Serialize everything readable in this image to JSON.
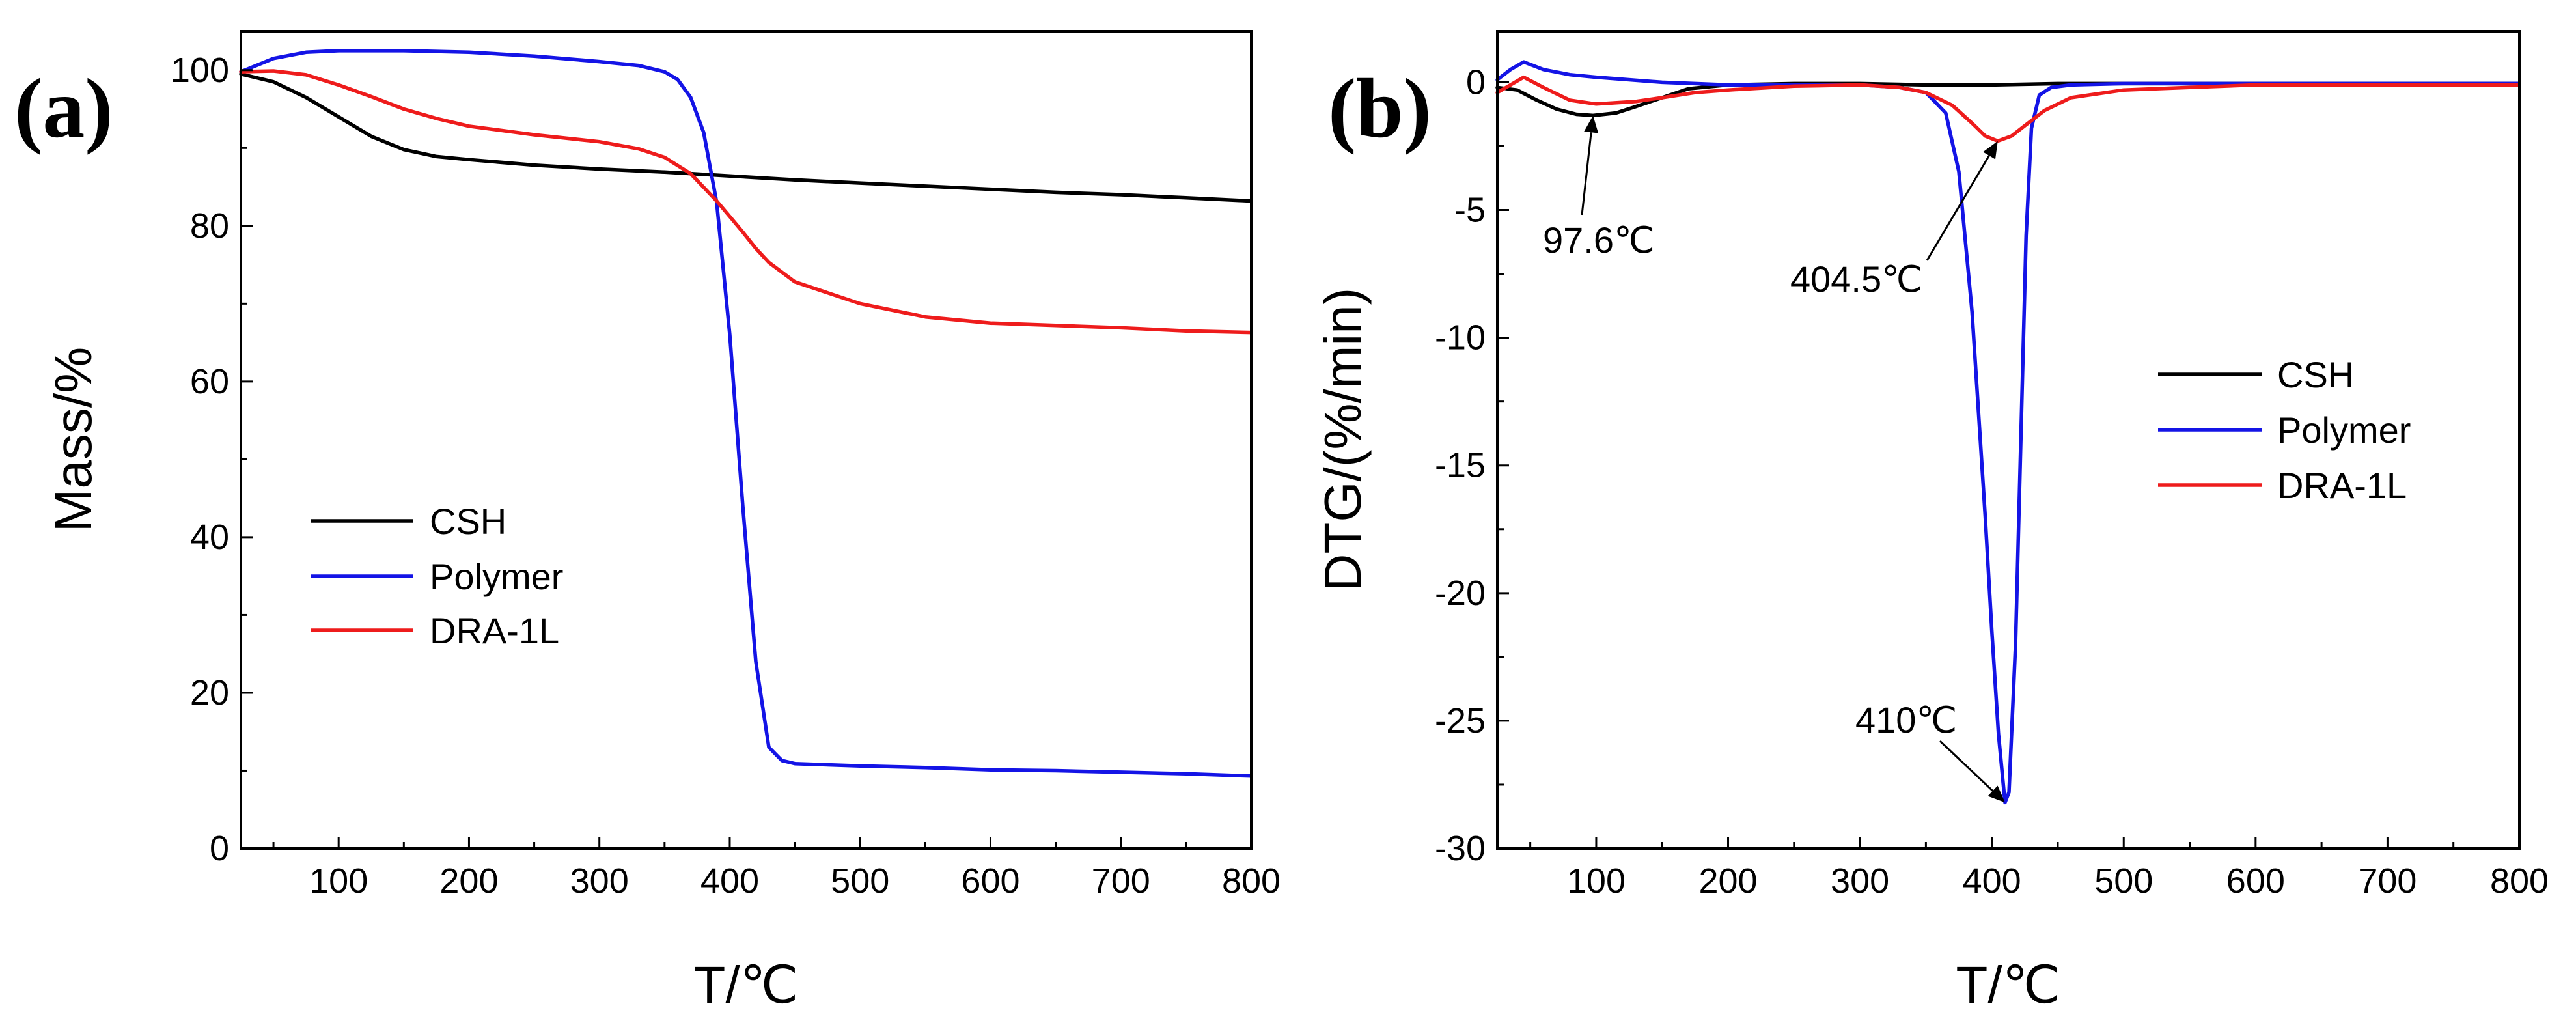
{
  "colors": {
    "CSH": "#000000",
    "Polymer": "#1414e6",
    "DRA-1L": "#ee1c1c"
  },
  "chart_data": [
    {
      "panel_label": "(a)",
      "type": "line",
      "title": "",
      "xlabel": "T/℃",
      "ylabel": "Mass/%",
      "xlim": [
        25,
        800
      ],
      "ylim": [
        0,
        105
      ],
      "xticks": [
        100,
        200,
        300,
        400,
        500,
        600,
        700,
        800
      ],
      "yticks": [
        0,
        20,
        40,
        60,
        80,
        100
      ],
      "grid": false,
      "legend_position": "lower-left",
      "series": [
        {
          "name": "CSH",
          "color_key": "CSH",
          "x": [
            25,
            50,
            75,
            100,
            125,
            150,
            175,
            200,
            250,
            300,
            350,
            400,
            450,
            500,
            550,
            600,
            650,
            700,
            750,
            800
          ],
          "y": [
            99.5,
            98.5,
            96.5,
            94,
            91.5,
            89.8,
            88.9,
            88.5,
            87.8,
            87.3,
            86.9,
            86.4,
            85.9,
            85.5,
            85.1,
            84.7,
            84.3,
            84.0,
            83.6,
            83.2
          ]
        },
        {
          "name": "Polymer",
          "color_key": "Polymer",
          "x": [
            25,
            50,
            75,
            100,
            150,
            200,
            250,
            300,
            330,
            350,
            360,
            370,
            380,
            390,
            400,
            410,
            420,
            430,
            440,
            450,
            500,
            550,
            600,
            650,
            700,
            750,
            800
          ],
          "y": [
            99.8,
            101.5,
            102.3,
            102.5,
            102.5,
            102.3,
            101.8,
            101.1,
            100.6,
            99.8,
            98.8,
            96.5,
            92,
            83,
            66,
            44,
            24,
            13,
            11.3,
            10.9,
            10.6,
            10.4,
            10.1,
            10.0,
            9.8,
            9.6,
            9.3
          ]
        },
        {
          "name": "DRA-1L",
          "color_key": "DRA-1L",
          "x": [
            25,
            50,
            75,
            100,
            125,
            150,
            175,
            200,
            250,
            300,
            330,
            350,
            370,
            390,
            400,
            410,
            420,
            430,
            450,
            500,
            550,
            600,
            650,
            700,
            750,
            800
          ],
          "y": [
            99.8,
            99.9,
            99.4,
            98.1,
            96.6,
            95.0,
            93.8,
            92.8,
            91.7,
            90.8,
            89.9,
            88.8,
            86.7,
            83.2,
            81.2,
            79.2,
            77.1,
            75.3,
            72.8,
            70.0,
            68.3,
            67.5,
            67.2,
            66.9,
            66.5,
            66.3
          ]
        }
      ]
    },
    {
      "panel_label": "(b)",
      "type": "line",
      "title": "",
      "xlabel": "T/℃",
      "ylabel": "DTG/(%/min)",
      "xlim": [
        25,
        800
      ],
      "ylim": [
        -30,
        2
      ],
      "xticks": [
        100,
        200,
        300,
        400,
        500,
        600,
        700,
        800
      ],
      "yticks": [
        0,
        -5,
        -10,
        -15,
        -20,
        -25,
        -30
      ],
      "grid": false,
      "legend_position": "center-right",
      "series": [
        {
          "name": "CSH",
          "color_key": "CSH",
          "x": [
            25,
            40,
            55,
            70,
            85,
            97.6,
            115,
            130,
            150,
            170,
            200,
            250,
            300,
            350,
            400,
            450,
            500,
            600,
            700,
            800
          ],
          "y": [
            -0.2,
            -0.3,
            -0.7,
            -1.05,
            -1.25,
            -1.3,
            -1.2,
            -0.95,
            -0.6,
            -0.25,
            -0.1,
            -0.05,
            -0.05,
            -0.1,
            -0.1,
            -0.05,
            -0.05,
            -0.05,
            -0.05,
            -0.05
          ]
        },
        {
          "name": "Polymer",
          "color_key": "Polymer",
          "x": [
            25,
            35,
            45,
            60,
            80,
            100,
            150,
            200,
            250,
            300,
            330,
            350,
            365,
            375,
            385,
            395,
            400,
            405,
            410,
            413,
            418,
            422,
            426,
            430,
            436,
            445,
            460,
            500,
            600,
            700,
            800
          ],
          "y": [
            0.1,
            0.5,
            0.8,
            0.5,
            0.3,
            0.2,
            0,
            -0.1,
            -0.1,
            -0.1,
            -0.2,
            -0.4,
            -1.2,
            -3.5,
            -9,
            -17,
            -21.5,
            -25.5,
            -28.2,
            -27.8,
            -22,
            -14,
            -6,
            -1.8,
            -0.5,
            -0.2,
            -0.1,
            -0.05,
            -0.05,
            -0.05,
            -0.05
          ]
        },
        {
          "name": "DRA-1L",
          "color_key": "DRA-1L",
          "x": [
            25,
            35,
            45,
            60,
            80,
            100,
            130,
            150,
            175,
            200,
            250,
            300,
            330,
            350,
            370,
            385,
            395,
            404.5,
            415,
            425,
            440,
            460,
            500,
            550,
            600,
            700,
            800
          ],
          "y": [
            -0.4,
            -0.1,
            0.2,
            -0.2,
            -0.7,
            -0.85,
            -0.75,
            -0.6,
            -0.4,
            -0.3,
            -0.15,
            -0.1,
            -0.2,
            -0.4,
            -0.9,
            -1.6,
            -2.1,
            -2.3,
            -2.1,
            -1.7,
            -1.1,
            -0.6,
            -0.3,
            -0.2,
            -0.1,
            -0.1,
            -0.1
          ]
        }
      ],
      "annotations": [
        {
          "text": "97.6℃",
          "x": 97.6,
          "y": -1.3
        },
        {
          "text": "404.5℃",
          "x": 404.5,
          "y": -2.3
        },
        {
          "text": "410℃",
          "x": 410,
          "y": -28.2
        }
      ]
    }
  ]
}
